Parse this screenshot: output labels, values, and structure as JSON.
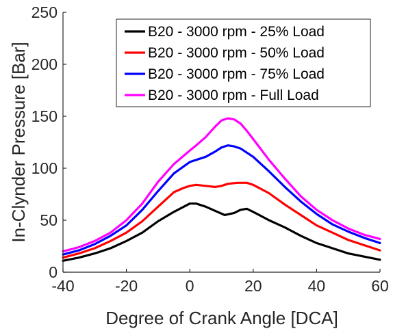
{
  "chart_data": {
    "type": "line",
    "xlabel": "Degree of Crank Angle [DCA]",
    "ylabel": "In-Clynder Pressure [Bar]",
    "xlim": [
      -40,
      60
    ],
    "ylim": [
      0,
      250
    ],
    "xticks": [
      -40,
      -20,
      0,
      20,
      40,
      60
    ],
    "yticks": [
      0,
      50,
      100,
      150,
      200,
      250
    ],
    "grid": false,
    "legend_position": "top-right",
    "series": [
      {
        "name": "B20 - 3000 rpm - 25% Load",
        "color": "#000000",
        "x": [
          -40,
          -35,
          -30,
          -25,
          -20,
          -15,
          -10,
          -5,
          0,
          2,
          5,
          8,
          11,
          14,
          16,
          18,
          20,
          25,
          30,
          35,
          40,
          45,
          50,
          55,
          60
        ],
        "y": [
          11,
          14,
          18,
          23,
          30,
          38,
          49,
          58,
          66,
          66,
          63,
          59,
          55,
          57,
          60,
          61,
          58,
          50,
          43,
          35,
          28,
          23,
          18,
          15,
          12
        ]
      },
      {
        "name": "B20 - 3000 rpm - 50% Load",
        "color": "#ff0000",
        "x": [
          -40,
          -35,
          -30,
          -25,
          -20,
          -15,
          -10,
          -5,
          -2,
          0,
          2,
          5,
          8,
          10,
          12,
          15,
          18,
          20,
          25,
          30,
          35,
          40,
          45,
          50,
          55,
          60
        ],
        "y": [
          14,
          18,
          23,
          30,
          38,
          49,
          63,
          77,
          81,
          83,
          84,
          83,
          82,
          83,
          85,
          86,
          86,
          84,
          76,
          65,
          55,
          45,
          38,
          31,
          26,
          21
        ]
      },
      {
        "name": "B20 - 3000 rpm - 75% Load",
        "color": "#0000ff",
        "x": [
          -40,
          -35,
          -30,
          -25,
          -20,
          -15,
          -10,
          -5,
          0,
          2,
          5,
          8,
          10,
          12,
          14,
          16,
          18,
          20,
          25,
          30,
          35,
          40,
          45,
          50,
          55,
          60
        ],
        "y": [
          17,
          21,
          27,
          35,
          45,
          60,
          78,
          95,
          106,
          108,
          111,
          116,
          120,
          122,
          121,
          119,
          115,
          111,
          97,
          82,
          68,
          56,
          46,
          39,
          33,
          28
        ]
      },
      {
        "name": "B20 - 3000 rpm - Full Load",
        "color": "#ff00ff",
        "x": [
          -40,
          -35,
          -30,
          -25,
          -20,
          -15,
          -10,
          -5,
          0,
          2,
          5,
          8,
          10,
          12,
          14,
          16,
          18,
          20,
          25,
          30,
          35,
          40,
          45,
          50,
          55,
          60
        ],
        "y": [
          20,
          24,
          30,
          38,
          50,
          66,
          87,
          104,
          117,
          122,
          130,
          140,
          146,
          148,
          147,
          143,
          136,
          128,
          108,
          90,
          73,
          60,
          50,
          42,
          36,
          32
        ]
      }
    ]
  }
}
